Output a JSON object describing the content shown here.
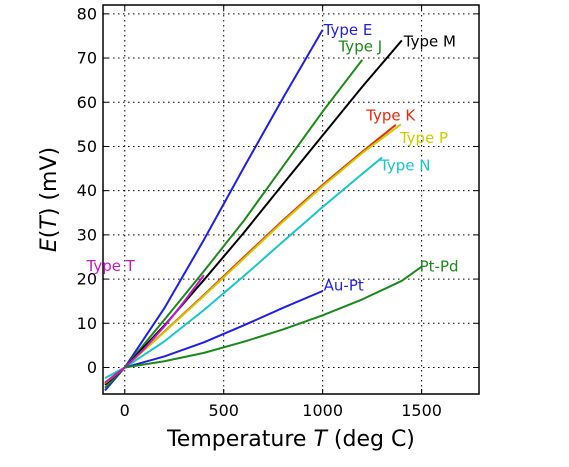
{
  "chart_data": {
    "type": "line",
    "title": "",
    "xlabel": "Temperature T (deg C)",
    "xlabel_parts": [
      "Temperature ",
      "T",
      " (deg C)"
    ],
    "ylabel": "E(T) (mV)",
    "ylabel_parts": [
      "E",
      "(",
      "T",
      ")",
      " (mV)"
    ],
    "xlim": [
      -110,
      1790
    ],
    "ylim": [
      -6,
      82
    ],
    "xticks": [
      0,
      500,
      1000,
      1500
    ],
    "yticks": [
      0,
      10,
      20,
      30,
      40,
      50,
      60,
      70,
      80
    ],
    "grid": true,
    "grid_style": "dotted",
    "legend": "inline labels at line ends",
    "series": [
      {
        "name": "Type E",
        "color": "#1f1fe6",
        "x": [
          -100,
          0,
          200,
          400,
          600,
          800,
          1000
        ],
        "y": [
          -5.2,
          0,
          13.4,
          28.9,
          45.1,
          61.0,
          76.4
        ],
        "label_anchor": [
          1000,
          76.4
        ]
      },
      {
        "name": "Type J",
        "color": "#1a8a1a",
        "x": [
          -100,
          0,
          200,
          400,
          600,
          800,
          1000,
          1200
        ],
        "y": [
          -4.6,
          0,
          10.8,
          21.8,
          33.1,
          45.5,
          57.9,
          69.6
        ],
        "label_anchor": [
          1080,
          72.6
        ]
      },
      {
        "name": "Type M",
        "color": "#000000",
        "x": [
          -100,
          0,
          200,
          400,
          600,
          800,
          1000,
          1200,
          1400
        ],
        "y": [
          -3.9,
          0,
          9.5,
          19.8,
          30.4,
          41.5,
          52.5,
          63.5,
          74.0
        ],
        "label_anchor": [
          1410,
          74.0
        ]
      },
      {
        "name": "Type K",
        "color": "#e62a0c",
        "x": [
          -100,
          0,
          200,
          400,
          600,
          800,
          1000,
          1200,
          1370
        ],
        "y": [
          -3.6,
          0,
          8.1,
          16.4,
          24.9,
          33.3,
          41.3,
          48.8,
          54.9
        ],
        "label_anchor": [
          1220,
          57.2
        ]
      },
      {
        "name": "Type P",
        "color": "#cccc00",
        "x": [
          -100,
          0,
          200,
          400,
          600,
          800,
          1000,
          1200,
          1395
        ],
        "y": [
          -3.5,
          0,
          8.0,
          16.2,
          24.6,
          33.0,
          41.0,
          48.5,
          55.0
        ],
        "label_anchor": [
          1390,
          53.0
        ]
      },
      {
        "name": "Type N",
        "color": "#17c7c7",
        "x": [
          -100,
          0,
          200,
          400,
          600,
          800,
          1000,
          1200,
          1300
        ],
        "y": [
          -2.4,
          0,
          5.9,
          13.0,
          20.6,
          28.5,
          36.3,
          43.8,
          47.5
        ],
        "label_anchor": [
          1300,
          47.5
        ]
      },
      {
        "name": "Type T",
        "color": "#c417c4",
        "x": [
          -100,
          0,
          100,
          200,
          300,
          400
        ],
        "y": [
          -3.4,
          0,
          4.3,
          9.3,
          14.9,
          20.9
        ],
        "label_anchor": [
          100,
          22.9
        ]
      },
      {
        "name": "Au-Pt",
        "color": "#1f1fe6",
        "x": [
          0,
          200,
          400,
          600,
          800,
          1000
        ],
        "y": [
          0,
          2.5,
          5.7,
          9.5,
          13.5,
          17.3
        ],
        "label_anchor": [
          1000,
          18.6
        ]
      },
      {
        "name": "Pt-Pd",
        "color": "#1a8a1a",
        "x": [
          0,
          200,
          400,
          600,
          800,
          1000,
          1200,
          1400,
          1500
        ],
        "y": [
          0,
          1.4,
          3.3,
          5.8,
          8.6,
          11.8,
          15.4,
          19.6,
          22.8
        ],
        "label_anchor": [
          1500,
          22.8
        ]
      }
    ]
  }
}
